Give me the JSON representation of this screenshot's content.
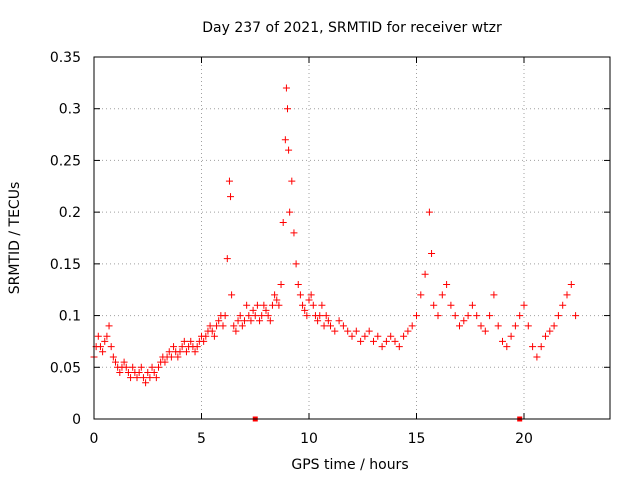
{
  "chart_data": {
    "type": "scatter",
    "title": "Day 237 of 2021, SRMTID for receiver wtzr",
    "xlabel": "GPS time / hours",
    "ylabel": "SRMTID / TECUs",
    "xlim": [
      0,
      24
    ],
    "ylim": [
      0,
      0.35
    ],
    "xticks": [
      0,
      5,
      10,
      15,
      20
    ],
    "xtick_labels": [
      "0",
      "5",
      "10",
      "15",
      "20"
    ],
    "yticks": [
      0,
      0.05,
      0.1,
      0.15,
      0.2,
      0.25,
      0.3,
      0.35
    ],
    "ytick_labels": [
      "0",
      "0.05",
      "0.1",
      "0.15",
      "0.2",
      "0.25",
      "0.3",
      "0.35"
    ],
    "grid": true,
    "marker": "plus",
    "color": "#ff0000",
    "series": [
      {
        "name": "SRMTID",
        "x": [
          0.0,
          0.1,
          0.2,
          0.3,
          0.4,
          0.5,
          0.6,
          0.7,
          0.8,
          0.9,
          1.0,
          1.1,
          1.2,
          1.3,
          1.4,
          1.5,
          1.6,
          1.7,
          1.8,
          1.9,
          2.0,
          2.1,
          2.2,
          2.3,
          2.4,
          2.5,
          2.6,
          2.7,
          2.8,
          2.9,
          3.0,
          3.1,
          3.2,
          3.3,
          3.4,
          3.5,
          3.6,
          3.7,
          3.8,
          3.9,
          4.0,
          4.1,
          4.2,
          4.3,
          4.4,
          4.5,
          4.6,
          4.7,
          4.8,
          4.9,
          5.0,
          5.1,
          5.2,
          5.3,
          5.4,
          5.5,
          5.6,
          5.7,
          5.8,
          5.9,
          6.0,
          6.1,
          6.2,
          6.3,
          6.35,
          6.4,
          6.5,
          6.6,
          6.7,
          6.8,
          6.9,
          7.0,
          7.1,
          7.2,
          7.3,
          7.4,
          7.5,
          7.6,
          7.7,
          7.8,
          7.9,
          8.0,
          8.1,
          8.2,
          8.3,
          8.4,
          8.5,
          8.6,
          8.7,
          8.8,
          8.9,
          8.95,
          9.0,
          9.05,
          9.1,
          9.2,
          9.3,
          9.4,
          9.5,
          9.6,
          9.7,
          9.8,
          9.9,
          10.0,
          10.1,
          10.2,
          10.3,
          10.4,
          10.5,
          10.6,
          10.7,
          10.8,
          10.9,
          11.0,
          11.2,
          11.4,
          11.6,
          11.8,
          12.0,
          12.2,
          12.4,
          12.6,
          12.8,
          13.0,
          13.2,
          13.4,
          13.6,
          13.8,
          14.0,
          14.2,
          14.4,
          14.6,
          14.8,
          15.0,
          15.2,
          15.4,
          15.6,
          15.7,
          15.8,
          16.0,
          16.2,
          16.4,
          16.6,
          16.8,
          17.0,
          17.2,
          17.4,
          17.6,
          17.8,
          18.0,
          18.2,
          18.4,
          18.6,
          18.8,
          19.0,
          19.2,
          19.4,
          19.6,
          19.8,
          20.0,
          20.2,
          20.4,
          20.6,
          20.8,
          21.0,
          21.2,
          21.4,
          21.6,
          21.8,
          22.0,
          22.2,
          22.4
        ],
        "y": [
          0.06,
          0.07,
          0.08,
          0.07,
          0.065,
          0.075,
          0.08,
          0.09,
          0.07,
          0.06,
          0.055,
          0.05,
          0.045,
          0.05,
          0.055,
          0.05,
          0.045,
          0.04,
          0.05,
          0.045,
          0.04,
          0.045,
          0.05,
          0.04,
          0.035,
          0.045,
          0.04,
          0.05,
          0.045,
          0.04,
          0.05,
          0.055,
          0.06,
          0.055,
          0.06,
          0.065,
          0.06,
          0.07,
          0.065,
          0.06,
          0.065,
          0.07,
          0.075,
          0.065,
          0.07,
          0.075,
          0.07,
          0.065,
          0.07,
          0.075,
          0.08,
          0.075,
          0.08,
          0.085,
          0.09,
          0.085,
          0.08,
          0.09,
          0.095,
          0.1,
          0.09,
          0.1,
          0.155,
          0.23,
          0.215,
          0.12,
          0.09,
          0.085,
          0.095,
          0.1,
          0.09,
          0.095,
          0.11,
          0.1,
          0.095,
          0.105,
          0.1,
          0.11,
          0.095,
          0.1,
          0.11,
          0.105,
          0.1,
          0.095,
          0.11,
          0.12,
          0.115,
          0.11,
          0.13,
          0.19,
          0.27,
          0.32,
          0.3,
          0.26,
          0.2,
          0.23,
          0.18,
          0.15,
          0.13,
          0.12,
          0.11,
          0.105,
          0.1,
          0.115,
          0.12,
          0.11,
          0.1,
          0.095,
          0.1,
          0.11,
          0.09,
          0.1,
          0.095,
          0.09,
          0.085,
          0.095,
          0.09,
          0.085,
          0.08,
          0.085,
          0.075,
          0.08,
          0.085,
          0.075,
          0.08,
          0.07,
          0.075,
          0.08,
          0.075,
          0.07,
          0.08,
          0.085,
          0.09,
          0.1,
          0.12,
          0.14,
          0.2,
          0.16,
          0.11,
          0.1,
          0.12,
          0.13,
          0.11,
          0.1,
          0.09,
          0.095,
          0.1,
          0.11,
          0.1,
          0.09,
          0.085,
          0.1,
          0.12,
          0.09,
          0.075,
          0.07,
          0.08,
          0.09,
          0.1,
          0.11,
          0.09,
          0.07,
          0.06,
          0.07,
          0.08,
          0.085,
          0.09,
          0.1,
          0.11,
          0.12,
          0.13,
          0.1
        ]
      }
    ],
    "gap_markers_x": [
      7.5,
      19.8
    ]
  }
}
